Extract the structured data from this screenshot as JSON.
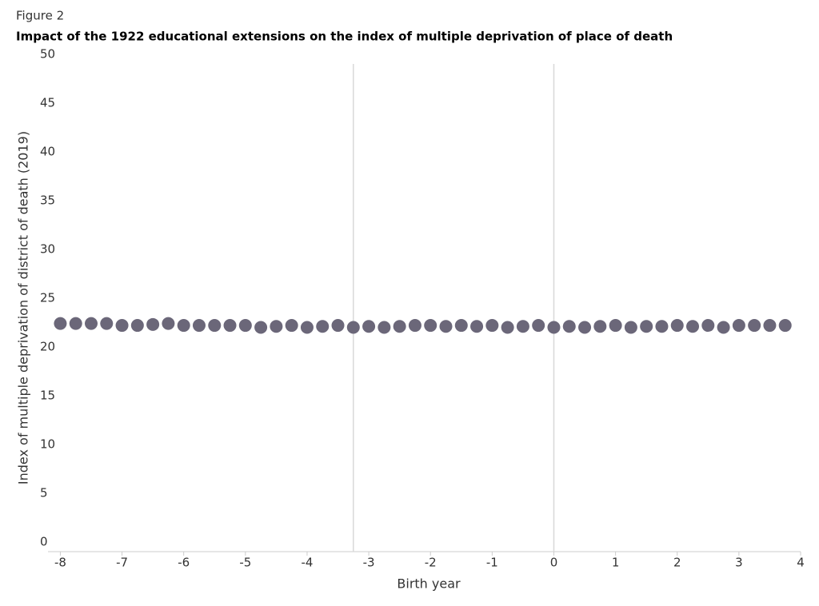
{
  "chart_data": {
    "type": "scatter",
    "figure_label": "Figure 2",
    "title": "Impact of the 1922 educational extensions on the index of multiple deprivation of place of death",
    "x_label": "Birth year",
    "y_label": "Index of multiple deprivation of district of death (2019)",
    "x": [
      -8,
      -7.75,
      -7.5,
      -7.25,
      -7,
      -6.75,
      -6.5,
      -6.25,
      -6,
      -5.75,
      -5.5,
      -5.25,
      -5,
      -4.75,
      -4.5,
      -4.25,
      -4,
      -3.75,
      -3.5,
      -3.25,
      -3,
      -2.75,
      -2.5,
      -2.25,
      -2,
      -1.75,
      -1.5,
      -1.25,
      -1,
      -0.75,
      -0.5,
      -0.25,
      0,
      0.25,
      0.5,
      0.75,
      1,
      1.25,
      1.5,
      1.75,
      2,
      2.25,
      2.5,
      2.75,
      3,
      3.25,
      3.5,
      3.75
    ],
    "values": [
      22.4,
      22.4,
      22.4,
      22.4,
      22.2,
      22.2,
      22.3,
      22.4,
      22.2,
      22.2,
      22.2,
      22.2,
      22.2,
      22.0,
      22.1,
      22.2,
      22.0,
      22.1,
      22.2,
      22.0,
      22.1,
      22.0,
      22.1,
      22.2,
      22.2,
      22.1,
      22.2,
      22.1,
      22.2,
      22.0,
      22.1,
      22.2,
      22.0,
      22.1,
      22.0,
      22.1,
      22.2,
      22.0,
      22.1,
      22.1,
      22.2,
      22.1,
      22.2,
      22.0,
      22.2,
      22.2,
      22.2,
      22.2
    ],
    "color": "#6b6779",
    "reference_lines_x": [
      -3.25,
      0
    ],
    "xlim": [
      -8.2,
      4
    ],
    "xticks": [
      -8,
      -7,
      -6,
      -5,
      -4,
      -3,
      -2,
      -1,
      0,
      1,
      2,
      3,
      4
    ],
    "ylim": [
      -1,
      50
    ],
    "yticks": [
      0,
      5,
      10,
      15,
      20,
      25,
      30,
      35,
      40,
      45,
      50
    ]
  }
}
